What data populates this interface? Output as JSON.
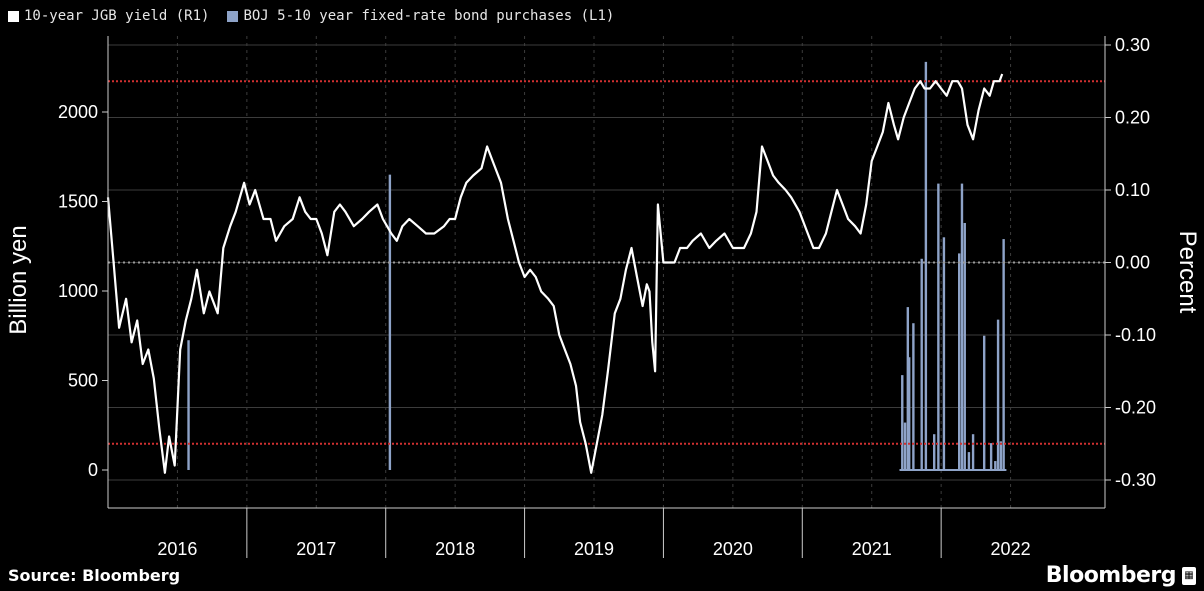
{
  "legend": {
    "yield_label": "10-year JGB yield (R1)",
    "purchases_label": "BOJ 5-10 year fixed-rate bond purchases (L1)"
  },
  "footer": {
    "source": "Source: Bloomberg",
    "brand": "Bloomberg",
    "brand_icon": "bloomberg-terminal-icon"
  },
  "colors": {
    "background": "#000000",
    "yield_line": "#ffffff",
    "purchases_bars": "#8ea3c8",
    "reference_lines": "#d03030",
    "zero_line": "#9a9a9a",
    "grid": "#3c3c3c"
  },
  "chart_data": {
    "type": "line",
    "xlabel": "",
    "x_ticks": [
      "2016",
      "2017",
      "2018",
      "2019",
      "2020",
      "2021",
      "2022"
    ],
    "x_range": [
      2015.5,
      2022.68
    ],
    "y_left": {
      "label": "Billion yen",
      "ticks": [
        "0",
        "500",
        "1000",
        "1500",
        "2000"
      ],
      "range": [
        -50,
        2350
      ]
    },
    "y_right": {
      "label": "Percent",
      "ticks": [
        "0.30",
        "0.20",
        "0.10",
        "0.00",
        "-0.10",
        "-0.20",
        "-0.30"
      ],
      "range": [
        -0.31,
        0.32
      ]
    },
    "reference_lines": [
      {
        "axis": "right",
        "value": 0.25,
        "style": "dotted-red"
      },
      {
        "axis": "right",
        "value": -0.25,
        "style": "dotted-red"
      },
      {
        "axis": "right",
        "value": 0.0,
        "style": "dotted-grey"
      }
    ],
    "grid": true,
    "legend_position": "top-left",
    "series": [
      {
        "name": "10-year JGB yield (R1)",
        "axis": "right",
        "type": "line",
        "points": [
          [
            2015.5,
            0.09
          ],
          [
            2015.54,
            0.0
          ],
          [
            2015.58,
            -0.09
          ],
          [
            2015.63,
            -0.05
          ],
          [
            2015.67,
            -0.11
          ],
          [
            2015.71,
            -0.08
          ],
          [
            2015.75,
            -0.14
          ],
          [
            2015.79,
            -0.12
          ],
          [
            2015.83,
            -0.16
          ],
          [
            2015.87,
            -0.23
          ],
          [
            2015.91,
            -0.29
          ],
          [
            2015.94,
            -0.24
          ],
          [
            2015.98,
            -0.28
          ],
          [
            2016.02,
            -0.12
          ],
          [
            2016.06,
            -0.08
          ],
          [
            2016.1,
            -0.05
          ],
          [
            2016.14,
            -0.01
          ],
          [
            2016.19,
            -0.07
          ],
          [
            2016.23,
            -0.04
          ],
          [
            2016.29,
            -0.07
          ],
          [
            2016.33,
            0.02
          ],
          [
            2016.38,
            0.05
          ],
          [
            2016.42,
            0.07
          ],
          [
            2016.48,
            0.11
          ],
          [
            2016.52,
            0.08
          ],
          [
            2016.56,
            0.1
          ],
          [
            2016.62,
            0.06
          ],
          [
            2016.67,
            0.06
          ],
          [
            2016.71,
            0.03
          ],
          [
            2016.77,
            0.05
          ],
          [
            2016.83,
            0.06
          ],
          [
            2016.88,
            0.09
          ],
          [
            2016.92,
            0.07
          ],
          [
            2016.96,
            0.06
          ],
          [
            2017.0,
            0.06
          ],
          [
            2017.04,
            0.04
          ],
          [
            2017.08,
            0.01
          ],
          [
            2017.13,
            0.07
          ],
          [
            2017.17,
            0.08
          ],
          [
            2017.21,
            0.07
          ],
          [
            2017.27,
            0.05
          ],
          [
            2017.33,
            0.06
          ],
          [
            2017.38,
            0.07
          ],
          [
            2017.44,
            0.08
          ],
          [
            2017.48,
            0.06
          ],
          [
            2017.54,
            0.04
          ],
          [
            2017.58,
            0.03
          ],
          [
            2017.62,
            0.05
          ],
          [
            2017.67,
            0.06
          ],
          [
            2017.73,
            0.05
          ],
          [
            2017.79,
            0.04
          ],
          [
            2017.85,
            0.04
          ],
          [
            2017.92,
            0.05
          ],
          [
            2017.96,
            0.06
          ],
          [
            2018.0,
            0.06
          ],
          [
            2018.04,
            0.09
          ],
          [
            2018.08,
            0.11
          ],
          [
            2018.13,
            0.12
          ],
          [
            2018.19,
            0.13
          ],
          [
            2018.23,
            0.16
          ],
          [
            2018.27,
            0.14
          ],
          [
            2018.33,
            0.11
          ],
          [
            2018.38,
            0.06
          ],
          [
            2018.42,
            0.03
          ],
          [
            2018.46,
            0.0
          ],
          [
            2018.5,
            -0.02
          ],
          [
            2018.54,
            -0.01
          ],
          [
            2018.58,
            -0.02
          ],
          [
            2018.62,
            -0.04
          ],
          [
            2018.67,
            -0.05
          ],
          [
            2018.71,
            -0.06
          ],
          [
            2018.75,
            -0.1
          ],
          [
            2018.79,
            -0.12
          ],
          [
            2018.83,
            -0.14
          ],
          [
            2018.87,
            -0.17
          ],
          [
            2018.9,
            -0.22
          ],
          [
            2018.94,
            -0.25
          ],
          [
            2018.98,
            -0.29
          ],
          [
            2019.02,
            -0.25
          ],
          [
            2019.06,
            -0.21
          ],
          [
            2019.1,
            -0.15
          ],
          [
            2019.15,
            -0.07
          ],
          [
            2019.19,
            -0.05
          ],
          [
            2019.23,
            -0.01
          ],
          [
            2019.27,
            0.02
          ],
          [
            2019.31,
            -0.02
          ],
          [
            2019.35,
            -0.06
          ],
          [
            2019.38,
            -0.03
          ],
          [
            2019.4,
            -0.04
          ],
          [
            2019.42,
            -0.11
          ],
          [
            2019.44,
            -0.15
          ],
          [
            2019.46,
            0.08
          ],
          [
            2019.5,
            0.0
          ],
          [
            2019.54,
            0.0
          ],
          [
            2019.58,
            0.0
          ],
          [
            2019.62,
            0.02
          ],
          [
            2019.67,
            0.02
          ],
          [
            2019.71,
            0.03
          ],
          [
            2019.77,
            0.04
          ],
          [
            2019.83,
            0.02
          ],
          [
            2019.88,
            0.03
          ],
          [
            2019.94,
            0.04
          ],
          [
            2020.0,
            0.02
          ],
          [
            2020.04,
            0.02
          ],
          [
            2020.08,
            0.02
          ],
          [
            2020.13,
            0.04
          ],
          [
            2020.17,
            0.07
          ],
          [
            2020.21,
            0.16
          ],
          [
            2020.25,
            0.14
          ],
          [
            2020.29,
            0.12
          ],
          [
            2020.33,
            0.11
          ],
          [
            2020.38,
            0.1
          ],
          [
            2020.42,
            0.09
          ],
          [
            2020.48,
            0.07
          ],
          [
            2020.54,
            0.04
          ],
          [
            2020.58,
            0.02
          ],
          [
            2020.62,
            0.02
          ],
          [
            2020.67,
            0.04
          ],
          [
            2020.71,
            0.07
          ],
          [
            2020.75,
            0.1
          ],
          [
            2020.79,
            0.08
          ],
          [
            2020.83,
            0.06
          ],
          [
            2020.88,
            0.05
          ],
          [
            2020.92,
            0.04
          ],
          [
            2020.96,
            0.08
          ],
          [
            2021.0,
            0.14
          ],
          [
            2021.04,
            0.16
          ],
          [
            2021.08,
            0.18
          ],
          [
            2021.12,
            0.22
          ],
          [
            2021.16,
            0.19
          ],
          [
            2021.19,
            0.17
          ],
          [
            2021.23,
            0.2
          ],
          [
            2021.27,
            0.22
          ],
          [
            2021.31,
            0.24
          ],
          [
            2021.35,
            0.25
          ],
          [
            2021.38,
            0.24
          ],
          [
            2021.42,
            0.24
          ],
          [
            2021.46,
            0.25
          ],
          [
            2021.5,
            0.24
          ],
          [
            2021.54,
            0.23
          ],
          [
            2021.58,
            0.25
          ],
          [
            2021.62,
            0.25
          ],
          [
            2021.65,
            0.24
          ],
          [
            2021.69,
            0.19
          ],
          [
            2021.73,
            0.17
          ],
          [
            2021.77,
            0.21
          ],
          [
            2021.81,
            0.24
          ],
          [
            2021.85,
            0.23
          ],
          [
            2021.88,
            0.25
          ],
          [
            2021.92,
            0.25
          ],
          [
            2021.94,
            0.26
          ]
        ]
      },
      {
        "name": "BOJ 5-10 year fixed-rate bond purchases (L1)",
        "axis": "left",
        "type": "bar",
        "points": [
          [
            2016.08,
            725
          ],
          [
            2017.53,
            1650
          ],
          [
            2021.22,
            530
          ],
          [
            2021.24,
            265
          ],
          [
            2021.26,
            910
          ],
          [
            2021.27,
            630
          ],
          [
            2021.3,
            820
          ],
          [
            2021.36,
            1180
          ],
          [
            2021.39,
            2280
          ],
          [
            2021.45,
            200
          ],
          [
            2021.48,
            1600
          ],
          [
            2021.52,
            1300
          ],
          [
            2021.63,
            1210
          ],
          [
            2021.65,
            1600
          ],
          [
            2021.67,
            1380
          ],
          [
            2021.7,
            100
          ],
          [
            2021.73,
            200
          ],
          [
            2021.81,
            750
          ],
          [
            2021.86,
            150
          ],
          [
            2021.89,
            50
          ],
          [
            2021.91,
            840
          ],
          [
            2021.93,
            160
          ],
          [
            2021.95,
            1290
          ]
        ]
      }
    ]
  }
}
